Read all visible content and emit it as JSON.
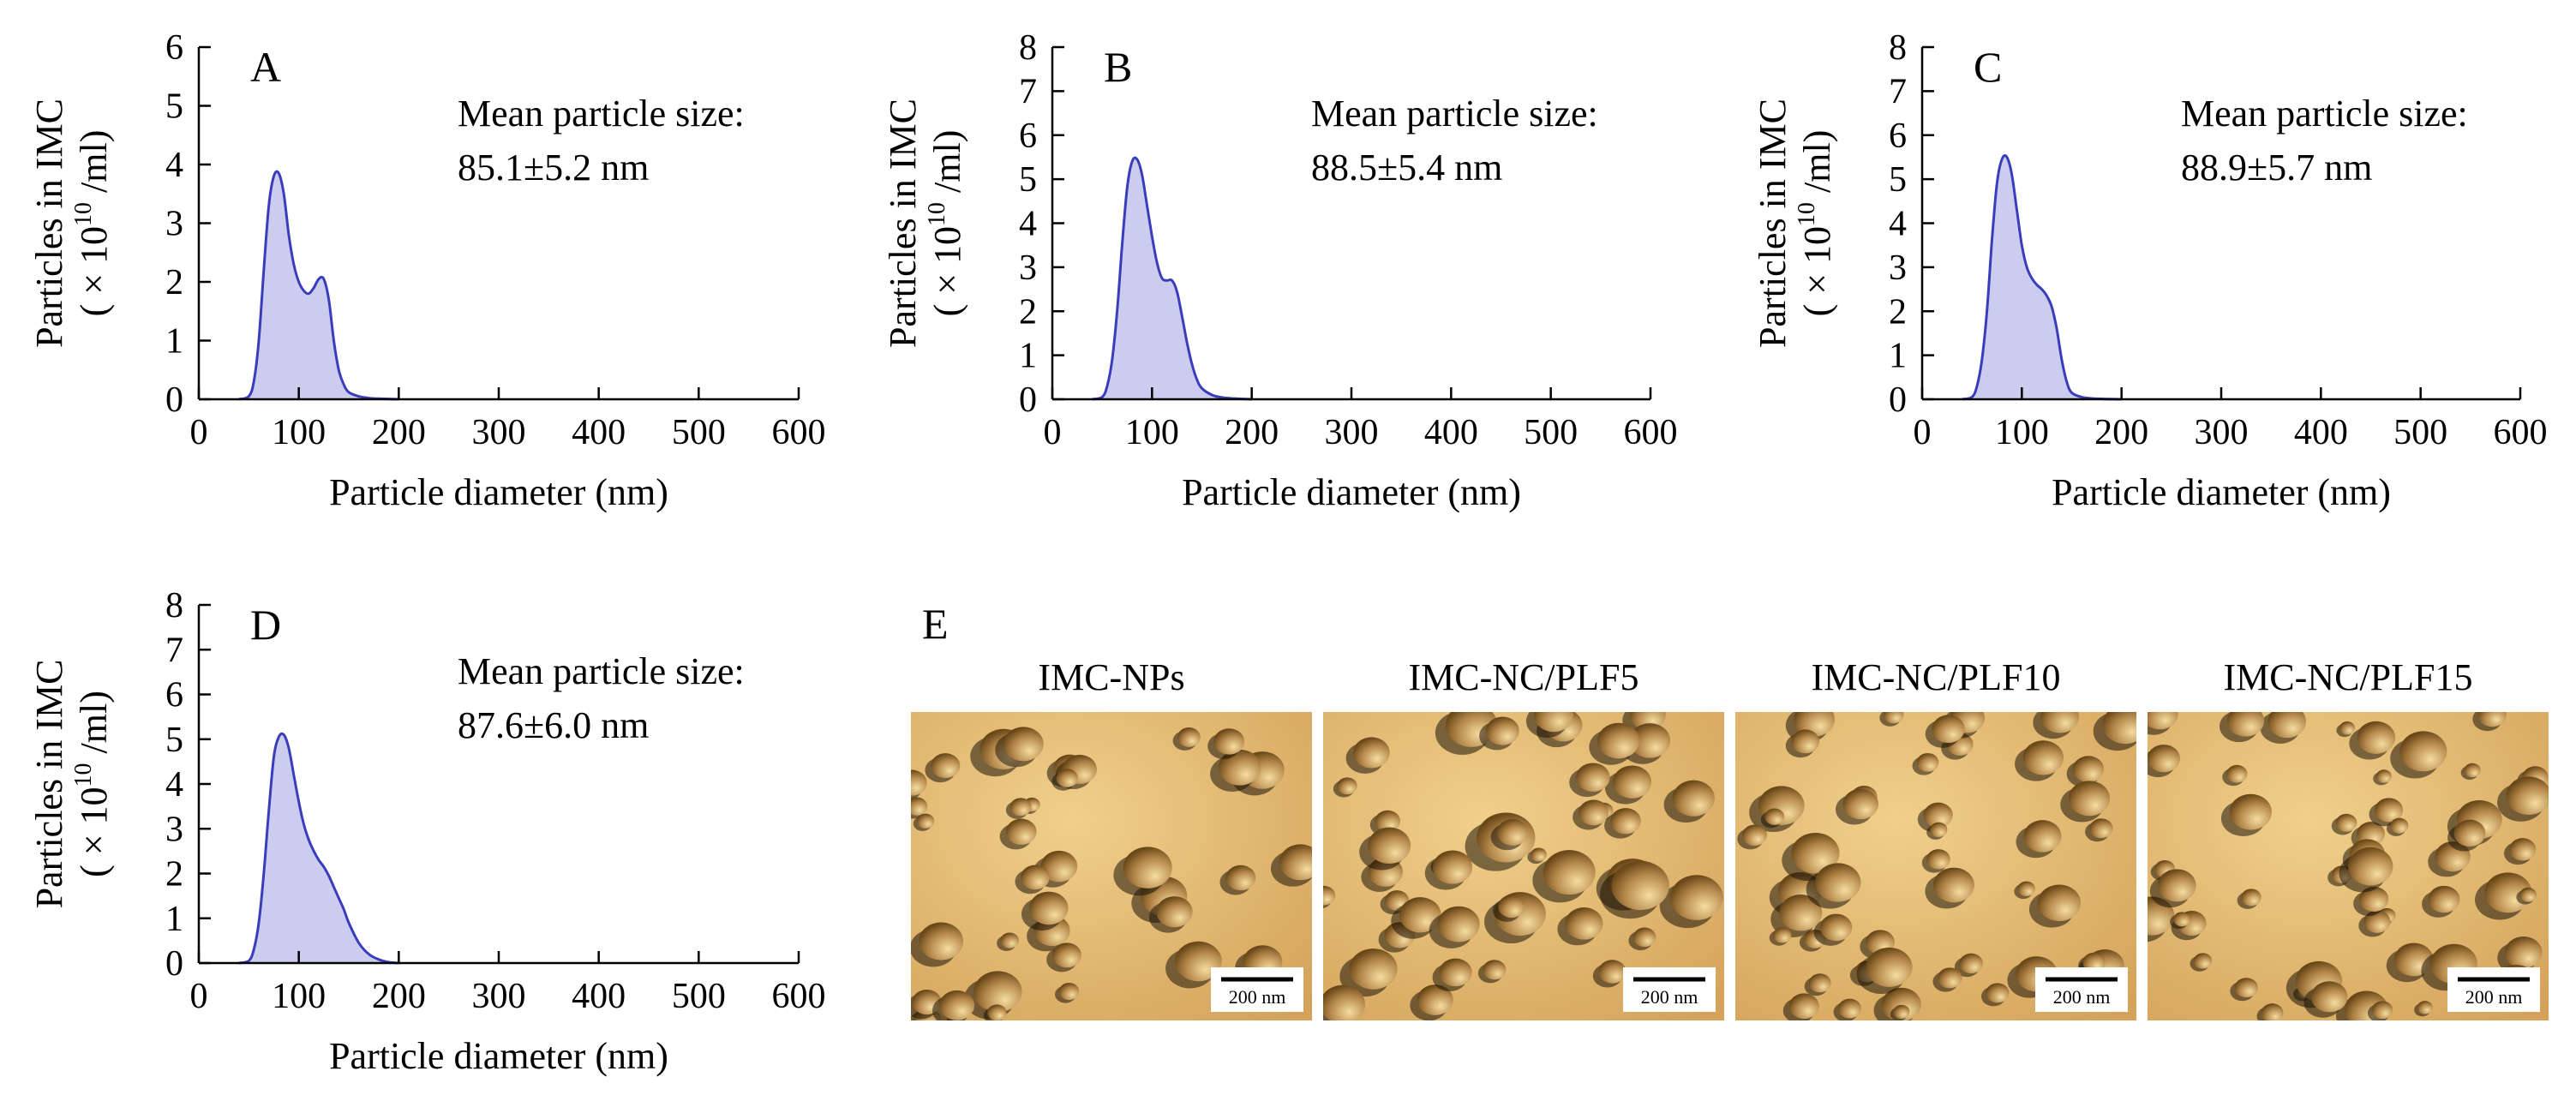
{
  "chart_data": [
    {
      "id": "A",
      "type": "area",
      "panel_label": "A",
      "xlabel": "Particle diameter (nm)",
      "ylabel_line1": "Particles in IMC",
      "ylabel_line2_prefix": "( × 10",
      "ylabel_line2_exp": "10",
      "ylabel_line2_suffix": " /ml)",
      "xlim": [
        0,
        600
      ],
      "ylim": [
        0,
        6
      ],
      "xticks": [
        0,
        100,
        200,
        300,
        400,
        500,
        600
      ],
      "yticks": [
        0,
        1,
        2,
        3,
        4,
        5,
        6
      ],
      "annotation_line1": "Mean particle size:",
      "annotation_line2": "85.1±5.2 nm",
      "series": [
        {
          "name": "A",
          "x": [
            40,
            50,
            55,
            60,
            65,
            70,
            75,
            80,
            85,
            90,
            95,
            100,
            105,
            110,
            115,
            120,
            125,
            130,
            135,
            140,
            145,
            150,
            160,
            170,
            180,
            200
          ],
          "y": [
            0,
            0.05,
            0.3,
            1.0,
            2.2,
            3.3,
            3.8,
            3.85,
            3.5,
            2.8,
            2.3,
            2.0,
            1.85,
            1.8,
            1.9,
            2.05,
            2.05,
            1.7,
            1.0,
            0.5,
            0.25,
            0.12,
            0.05,
            0.02,
            0.01,
            0
          ]
        }
      ]
    },
    {
      "id": "B",
      "type": "area",
      "panel_label": "B",
      "xlabel": "Particle diameter (nm)",
      "ylabel_line1": "Particles in IMC",
      "ylabel_line2_prefix": "( × 10",
      "ylabel_line2_exp": "10",
      "ylabel_line2_suffix": " /ml)",
      "xlim": [
        0,
        600
      ],
      "ylim": [
        0,
        8
      ],
      "xticks": [
        0,
        100,
        200,
        300,
        400,
        500,
        600
      ],
      "yticks": [
        0,
        1,
        2,
        3,
        4,
        5,
        6,
        7,
        8
      ],
      "annotation_line1": "Mean particle size:",
      "annotation_line2": "88.5±5.4 nm",
      "series": [
        {
          "name": "B",
          "x": [
            40,
            50,
            55,
            60,
            65,
            70,
            75,
            80,
            85,
            90,
            95,
            100,
            105,
            110,
            115,
            120,
            125,
            130,
            135,
            140,
            145,
            150,
            160,
            170,
            180,
            200
          ],
          "y": [
            0,
            0.05,
            0.3,
            0.9,
            2.0,
            3.5,
            4.8,
            5.4,
            5.45,
            5.1,
            4.4,
            3.7,
            3.1,
            2.75,
            2.7,
            2.7,
            2.45,
            1.9,
            1.3,
            0.8,
            0.45,
            0.25,
            0.1,
            0.04,
            0.02,
            0
          ]
        }
      ]
    },
    {
      "id": "C",
      "type": "area",
      "panel_label": "C",
      "xlabel": "Particle diameter (nm)",
      "ylabel_line1": "Particles in IMC",
      "ylabel_line2_prefix": "( × 10",
      "ylabel_line2_exp": "10",
      "ylabel_line2_suffix": " /ml)",
      "xlim": [
        0,
        600
      ],
      "ylim": [
        0,
        8
      ],
      "xticks": [
        0,
        100,
        200,
        300,
        400,
        500,
        600
      ],
      "yticks": [
        0,
        1,
        2,
        3,
        4,
        5,
        6,
        7,
        8
      ],
      "annotation_line1": "Mean particle size:",
      "annotation_line2": "88.9±5.7 nm",
      "series": [
        {
          "name": "C",
          "x": [
            40,
            50,
            55,
            60,
            65,
            70,
            75,
            80,
            85,
            90,
            95,
            100,
            105,
            110,
            115,
            120,
            125,
            130,
            135,
            140,
            145,
            150,
            160,
            170,
            180,
            200
          ],
          "y": [
            0,
            0.05,
            0.3,
            0.9,
            2.0,
            3.6,
            4.9,
            5.45,
            5.5,
            5.1,
            4.3,
            3.5,
            3.0,
            2.75,
            2.6,
            2.5,
            2.35,
            2.1,
            1.6,
            0.9,
            0.4,
            0.15,
            0.05,
            0.02,
            0.01,
            0
          ]
        }
      ]
    },
    {
      "id": "D",
      "type": "area",
      "panel_label": "D",
      "xlabel": "Particle diameter (nm)",
      "ylabel_line1": "Particles in IMC",
      "ylabel_line2_prefix": "( × 10",
      "ylabel_line2_exp": "10",
      "ylabel_line2_suffix": " /ml)",
      "xlim": [
        0,
        600
      ],
      "ylim": [
        0,
        8
      ],
      "xticks": [
        0,
        100,
        200,
        300,
        400,
        500,
        600
      ],
      "yticks": [
        0,
        1,
        2,
        3,
        4,
        5,
        6,
        7,
        8
      ],
      "annotation_line1": "Mean particle size:",
      "annotation_line2": "87.6±6.0 nm",
      "series": [
        {
          "name": "D",
          "x": [
            40,
            50,
            55,
            60,
            65,
            70,
            75,
            80,
            85,
            90,
            95,
            100,
            105,
            110,
            115,
            120,
            125,
            130,
            135,
            140,
            145,
            150,
            160,
            170,
            180,
            190,
            200
          ],
          "y": [
            0,
            0.05,
            0.3,
            0.9,
            2.0,
            3.4,
            4.6,
            5.05,
            5.1,
            4.8,
            4.2,
            3.6,
            3.1,
            2.75,
            2.5,
            2.3,
            2.15,
            1.95,
            1.7,
            1.45,
            1.2,
            0.9,
            0.45,
            0.2,
            0.08,
            0.02,
            0
          ]
        }
      ]
    }
  ],
  "afm": {
    "panel_label": "E",
    "scale_bar_label": "200 nm",
    "images": [
      {
        "title": "IMC-NPs"
      },
      {
        "title": "IMC-NC/PLF5"
      },
      {
        "title": "IMC-NC/PLF10"
      },
      {
        "title": "IMC-NC/PLF15"
      }
    ]
  },
  "colors": {
    "fill": "#cccdee",
    "line": "#3a3dbb",
    "axis": "#000000",
    "afm_base": "#d4a25a",
    "afm_light": "#f0d08c",
    "afm_dark": "#1e1408",
    "afm_shadow": "#6a4818"
  }
}
